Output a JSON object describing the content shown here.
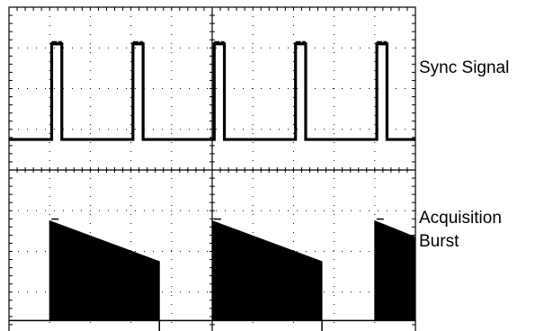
{
  "colors": {
    "background": "#ffffff",
    "trace": "#000000",
    "grid": "#000000"
  },
  "labels": {
    "sync": "Sync Signal",
    "acquisition_line1": "Acquisition",
    "acquisition_line2": "Burst"
  },
  "chart_data": {
    "type": "line",
    "grid": {
      "horizontal_divisions": 10,
      "vertical_divisions": 8,
      "minor_ticks_per_division": 5,
      "style": "dotted"
    },
    "series": [
      {
        "name": "Sync Signal",
        "kind": "pulse",
        "x_units": "divisions",
        "y_units": "divisions",
        "baseline": 4.75,
        "high": 7.1,
        "pulses": [
          [
            1.05,
            1.3
          ],
          [
            3.05,
            3.3
          ],
          [
            5.05,
            5.3
          ],
          [
            7.05,
            7.3
          ],
          [
            9.05,
            9.3
          ]
        ]
      },
      {
        "name": "Acquisition Burst",
        "kind": "burst",
        "x_units": "divisions",
        "y_units": "divisions",
        "baseline": 0.3,
        "bursts": [
          {
            "start": 1.0,
            "end": 3.7,
            "start_level": 2.75,
            "end_level": 1.75
          },
          {
            "start": 5.0,
            "end": 7.7,
            "start_level": 2.75,
            "end_level": 1.75
          },
          {
            "start": 9.0,
            "end": 10.0,
            "start_level": 2.75,
            "end_level": 2.35
          }
        ],
        "dips": [
          3.7,
          7.7
        ]
      }
    ]
  }
}
